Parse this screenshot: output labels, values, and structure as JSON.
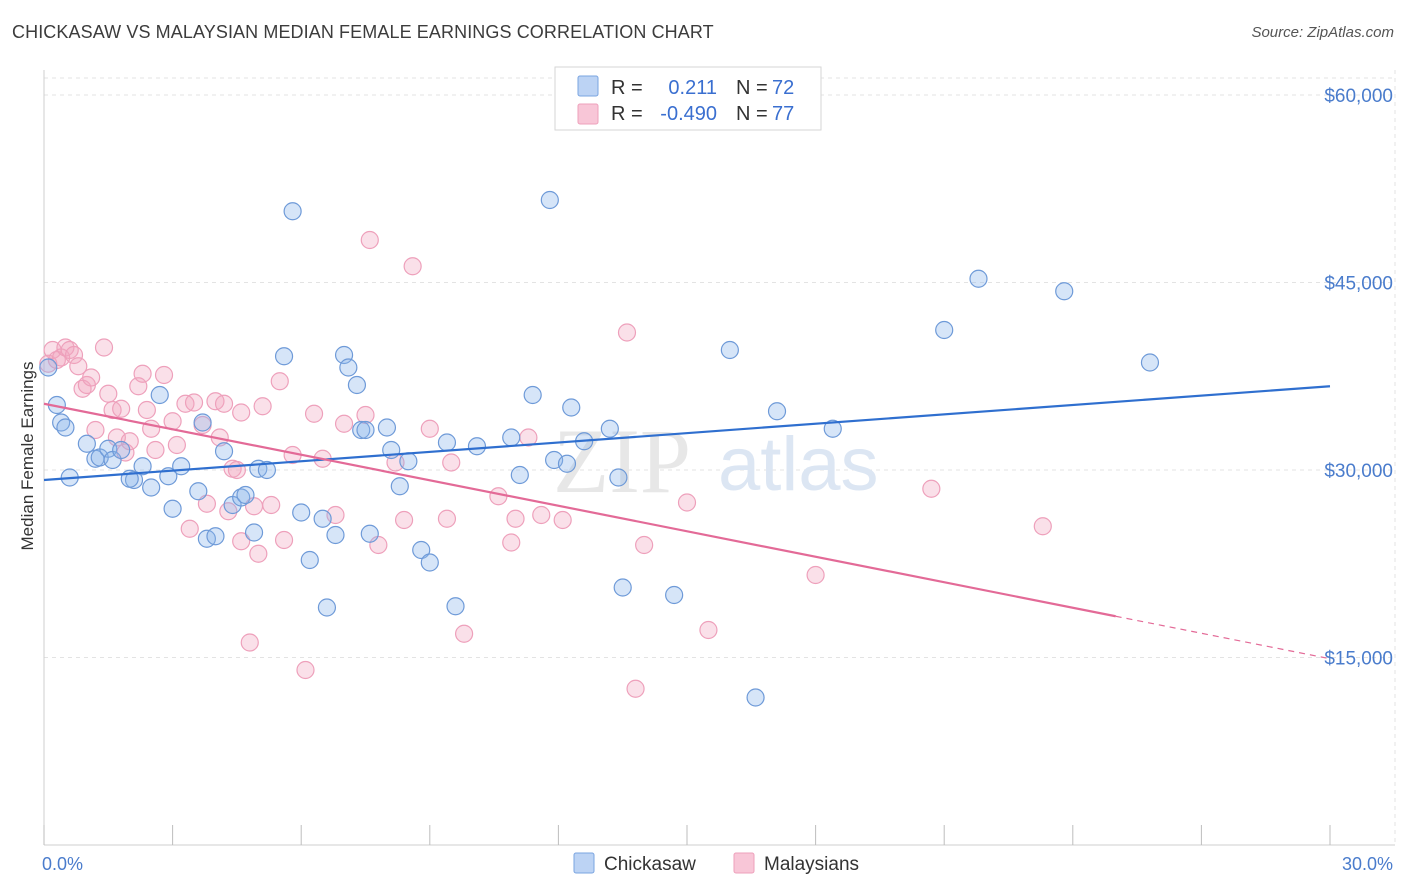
{
  "title": "CHICKASAW VS MALAYSIAN MEDIAN FEMALE EARNINGS CORRELATION CHART",
  "source": "Source: ZipAtlas.com",
  "colors": {
    "chickasaw": "#8ab4ea",
    "chickasaw_line": "#2f6fcf",
    "malaysians": "#f2a7c1",
    "malaysians_line": "#e36a97",
    "axis_text": "#4a7ccc",
    "grid": "#e3e3e3"
  },
  "legend": {
    "r_label": "R =",
    "n_label": "N =",
    "rows": [
      {
        "series": "Chickasaw",
        "r": "0.211",
        "n": "72"
      },
      {
        "series": "Malaysians",
        "r": "-0.490",
        "n": "77"
      }
    ]
  },
  "bottom_legend": [
    "Chickasaw",
    "Malaysians"
  ],
  "watermark": {
    "zip": "ZIP",
    "atlas": "atlas"
  },
  "chart_data": {
    "type": "scatter",
    "ylabel": "Median Female Earnings",
    "xlim": [
      0,
      30
    ],
    "ylim": [
      0,
      62000
    ],
    "y_ticks": [
      15000,
      30000,
      45000,
      60000
    ],
    "y_tick_labels": [
      "$15,000",
      "$30,000",
      "$45,000",
      "$60,000"
    ],
    "x_tick_labels": {
      "0": "0.0%",
      "30": "30.0%"
    },
    "grid": true,
    "series": [
      {
        "name": "Chickasaw",
        "r": 0.211,
        "n": 72,
        "trend": [
          [
            0,
            29200
          ],
          [
            30,
            36700
          ]
        ],
        "points": [
          [
            0.1,
            38200
          ],
          [
            0.3,
            35200
          ],
          [
            0.4,
            33800
          ],
          [
            0.5,
            33400
          ],
          [
            0.6,
            29400
          ],
          [
            1.0,
            32100
          ],
          [
            1.2,
            30900
          ],
          [
            1.3,
            31000
          ],
          [
            1.5,
            31700
          ],
          [
            1.6,
            30800
          ],
          [
            1.8,
            31600
          ],
          [
            2.1,
            29200
          ],
          [
            2.3,
            30300
          ],
          [
            2.5,
            28600
          ],
          [
            2.7,
            36000
          ],
          [
            2.9,
            29500
          ],
          [
            3.0,
            26900
          ],
          [
            3.2,
            30300
          ],
          [
            3.6,
            28300
          ],
          [
            3.7,
            33800
          ],
          [
            3.8,
            24500
          ],
          [
            4.0,
            24700
          ],
          [
            4.2,
            31500
          ],
          [
            4.4,
            27200
          ],
          [
            4.6,
            27800
          ],
          [
            4.7,
            28000
          ],
          [
            4.9,
            25000
          ],
          [
            5.0,
            30100
          ],
          [
            5.2,
            30000
          ],
          [
            5.6,
            39100
          ],
          [
            5.8,
            50700
          ],
          [
            6.0,
            26600
          ],
          [
            6.2,
            22800
          ],
          [
            6.5,
            26100
          ],
          [
            6.6,
            19000
          ],
          [
            6.8,
            24800
          ],
          [
            7.0,
            39200
          ],
          [
            7.1,
            38200
          ],
          [
            7.3,
            36800
          ],
          [
            7.4,
            33200
          ],
          [
            7.5,
            33200
          ],
          [
            7.6,
            24900
          ],
          [
            8.0,
            33400
          ],
          [
            8.1,
            31600
          ],
          [
            8.3,
            28700
          ],
          [
            8.5,
            30700
          ],
          [
            8.8,
            23600
          ],
          [
            9.0,
            22600
          ],
          [
            9.4,
            32200
          ],
          [
            9.6,
            19100
          ],
          [
            10.1,
            31900
          ],
          [
            10.9,
            32600
          ],
          [
            11.1,
            29600
          ],
          [
            11.4,
            36000
          ],
          [
            11.9,
            30800
          ],
          [
            12.2,
            30500
          ],
          [
            12.3,
            35000
          ],
          [
            11.8,
            51600
          ],
          [
            12.6,
            32300
          ],
          [
            13.2,
            33300
          ],
          [
            13.4,
            29400
          ],
          [
            13.5,
            20600
          ],
          [
            14.7,
            20000
          ],
          [
            16.0,
            39600
          ],
          [
            16.6,
            11800
          ],
          [
            17.1,
            34700
          ],
          [
            18.4,
            33300
          ],
          [
            21.0,
            41200
          ],
          [
            21.8,
            45300
          ],
          [
            23.8,
            44300
          ],
          [
            25.8,
            38600
          ],
          [
            2.0,
            29300
          ]
        ]
      },
      {
        "name": "Malaysians",
        "r": -0.49,
        "n": 77,
        "trend": [
          [
            0,
            35300
          ],
          [
            25,
            18300
          ]
        ],
        "trend_dashed": [
          [
            25,
            18300
          ],
          [
            30,
            14900
          ]
        ],
        "points": [
          [
            0.1,
            38500
          ],
          [
            0.2,
            39600
          ],
          [
            0.3,
            38800
          ],
          [
            0.4,
            39000
          ],
          [
            0.5,
            39800
          ],
          [
            0.6,
            39600
          ],
          [
            0.7,
            39200
          ],
          [
            0.8,
            38300
          ],
          [
            0.9,
            36500
          ],
          [
            1.0,
            36800
          ],
          [
            1.1,
            37400
          ],
          [
            1.2,
            33200
          ],
          [
            1.4,
            39800
          ],
          [
            1.5,
            36100
          ],
          [
            1.6,
            34800
          ],
          [
            1.7,
            32600
          ],
          [
            1.8,
            34900
          ],
          [
            1.9,
            31400
          ],
          [
            2.0,
            32300
          ],
          [
            2.2,
            36700
          ],
          [
            2.4,
            34800
          ],
          [
            2.5,
            33300
          ],
          [
            2.6,
            31600
          ],
          [
            2.8,
            37600
          ],
          [
            3.0,
            33900
          ],
          [
            3.1,
            32000
          ],
          [
            3.3,
            35300
          ],
          [
            3.4,
            25300
          ],
          [
            3.5,
            35400
          ],
          [
            3.7,
            33600
          ],
          [
            3.8,
            27300
          ],
          [
            4.0,
            35500
          ],
          [
            4.1,
            32600
          ],
          [
            4.2,
            35300
          ],
          [
            4.3,
            26700
          ],
          [
            4.4,
            30100
          ],
          [
            4.5,
            30000
          ],
          [
            4.6,
            34600
          ],
          [
            4.8,
            16200
          ],
          [
            4.9,
            27100
          ],
          [
            5.0,
            23300
          ],
          [
            5.1,
            35100
          ],
          [
            5.3,
            27200
          ],
          [
            5.5,
            37100
          ],
          [
            5.6,
            24400
          ],
          [
            5.8,
            31200
          ],
          [
            6.1,
            14000
          ],
          [
            6.3,
            34500
          ],
          [
            6.5,
            30900
          ],
          [
            6.8,
            26400
          ],
          [
            7.0,
            33700
          ],
          [
            7.5,
            34400
          ],
          [
            7.6,
            48400
          ],
          [
            7.8,
            24000
          ],
          [
            8.2,
            30600
          ],
          [
            8.4,
            26000
          ],
          [
            8.6,
            46300
          ],
          [
            9.0,
            33300
          ],
          [
            9.4,
            26100
          ],
          [
            9.5,
            30600
          ],
          [
            9.8,
            16900
          ],
          [
            10.6,
            27900
          ],
          [
            10.9,
            24200
          ],
          [
            11.0,
            26100
          ],
          [
            11.3,
            32600
          ],
          [
            11.6,
            26400
          ],
          [
            12.1,
            26000
          ],
          [
            13.6,
            41000
          ],
          [
            14.0,
            24000
          ],
          [
            13.8,
            12500
          ],
          [
            15.0,
            27400
          ],
          [
            15.5,
            17200
          ],
          [
            18.0,
            21600
          ],
          [
            20.7,
            28500
          ],
          [
            23.3,
            25500
          ],
          [
            4.6,
            24300
          ],
          [
            2.3,
            37700
          ]
        ]
      }
    ]
  }
}
